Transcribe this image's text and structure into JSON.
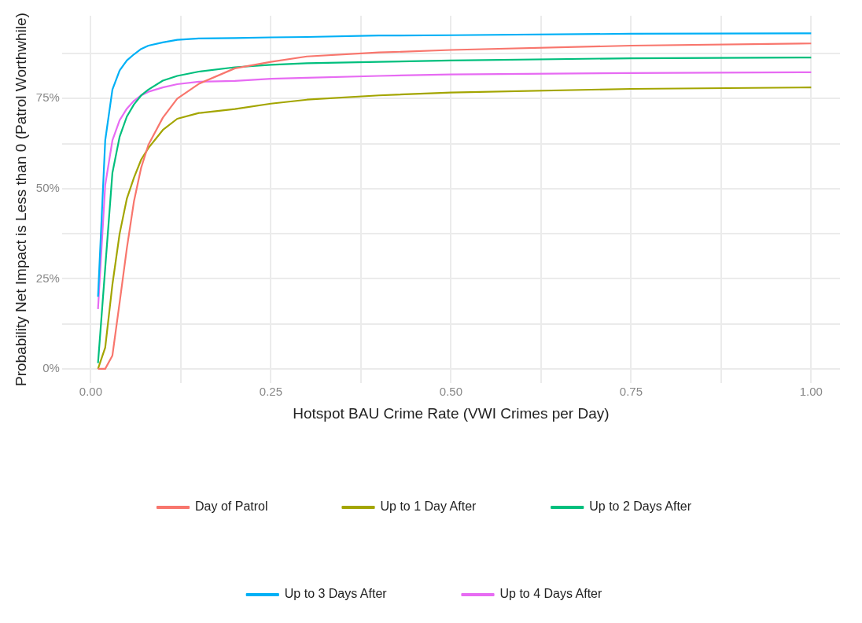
{
  "chart_data": {
    "type": "line",
    "xlabel": "Hotspot BAU Crime Rate (VWI Crimes per Day)",
    "ylabel": "Probability Net Impact is Less than 0 (Patrol Worthwhile)",
    "x": [
      0.01,
      0.02,
      0.03,
      0.04,
      0.05,
      0.06,
      0.07,
      0.08,
      0.1,
      0.12,
      0.15,
      0.2,
      0.25,
      0.3,
      0.4,
      0.5,
      0.75,
      1.0
    ],
    "series": [
      {
        "name": "Day of Patrol",
        "color": "#f8766d",
        "values": [
          0,
          0,
          3.7,
          18.4,
          33.4,
          46.6,
          55.9,
          62.2,
          69.7,
          75,
          79.1,
          83.4,
          85.2,
          86.7,
          87.8,
          88.5,
          89.7,
          90.3
        ]
      },
      {
        "name": "Up to 1 Day After",
        "color": "#a3a500",
        "values": [
          0,
          5.9,
          23.4,
          37.5,
          47.2,
          53.1,
          58.1,
          61.3,
          66.3,
          69.4,
          71,
          72.1,
          73.6,
          74.7,
          75.9,
          76.7,
          77.7,
          78.1
        ]
      },
      {
        "name": "Up to 2 Days After",
        "color": "#00bf7d",
        "values": [
          1.6,
          28,
          54.4,
          64.4,
          70,
          73.4,
          75.9,
          77.5,
          80,
          81.3,
          82.5,
          83.7,
          84.4,
          84.8,
          85.2,
          85.6,
          86.2,
          86.4
        ]
      },
      {
        "name": "Up to 3 Days After",
        "color": "#00b0f6",
        "values": [
          20,
          63.4,
          77.5,
          82.8,
          85.6,
          87.3,
          88.8,
          89.7,
          90.6,
          91.3,
          91.7,
          91.8,
          92,
          92.1,
          92.5,
          92.6,
          93,
          93.1
        ]
      },
      {
        "name": "Up to 4 Days After",
        "color": "#e76bf3",
        "values": [
          16.6,
          51,
          63.4,
          69,
          72.2,
          74.4,
          75.9,
          76.9,
          78.1,
          79,
          79.7,
          79.9,
          80.5,
          80.8,
          81.3,
          81.7,
          82.1,
          82.3
        ]
      }
    ],
    "xlim": [
      -0.04,
      1.04
    ],
    "xticks": [
      {
        "value": 0,
        "label": "0.00"
      },
      {
        "value": 0.125,
        "label": null
      },
      {
        "value": 0.25,
        "label": "0.25"
      },
      {
        "value": 0.375,
        "label": null
      },
      {
        "value": 0.5,
        "label": "0.50"
      },
      {
        "value": 0.625,
        "label": null
      },
      {
        "value": 0.75,
        "label": "0.75"
      },
      {
        "value": 0.875,
        "label": null
      },
      {
        "value": 1,
        "label": "1.00"
      }
    ],
    "ylim": [
      -4,
      98
    ],
    "yticks": [
      {
        "value": 0,
        "label": "0%"
      },
      {
        "value": 12.5,
        "label": null
      },
      {
        "value": 25,
        "label": "25%"
      },
      {
        "value": 37.5,
        "label": null
      },
      {
        "value": 50,
        "label": "50%"
      },
      {
        "value": 62.5,
        "label": null
      },
      {
        "value": 75,
        "label": "75%"
      },
      {
        "value": 87.5,
        "label": null
      }
    ],
    "grid": true,
    "legend": "bottom",
    "marker": "none",
    "line_style": "solid"
  }
}
